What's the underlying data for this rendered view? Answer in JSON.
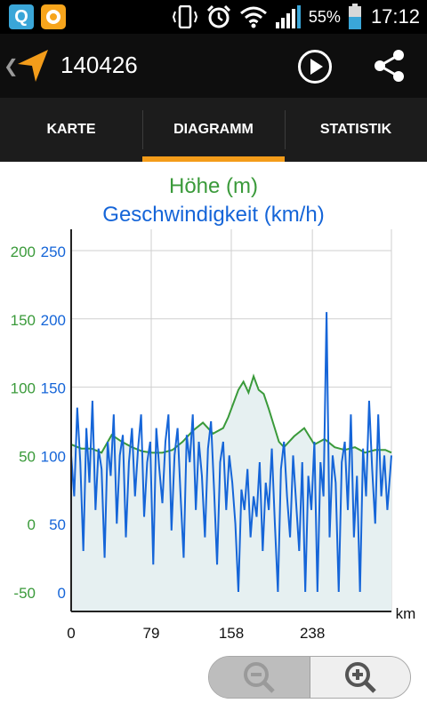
{
  "status_bar": {
    "app_icon_1": "Q",
    "battery_text": "55%",
    "time": "17:12"
  },
  "action_bar": {
    "title": "140426",
    "icons": [
      "back-chevron-icon",
      "navigation-arrow-icon",
      "play-icon",
      "share-icon"
    ]
  },
  "tabs": [
    {
      "label": "KARTE",
      "active": false
    },
    {
      "label": "DIAGRAMM",
      "active": true
    },
    {
      "label": "STATISTIK",
      "active": false
    }
  ],
  "colors": {
    "elevation": "#3a9a3a",
    "speed": "#1565d8",
    "accent": "#f39c1a",
    "fill": "#e6f0f1"
  },
  "chart_data": {
    "type": "line",
    "title": "Höhe (m)",
    "subtitle": "Geschwindigkeit (km/h)",
    "xlabel": "km",
    "x_ticks": [
      "0",
      "79",
      "158",
      "238"
    ],
    "x_tick_values": [
      0,
      79,
      158,
      238
    ],
    "xlim": [
      0,
      316
    ],
    "y_left_ticks": [
      "200",
      "150",
      "100",
      "50",
      "0",
      "-50"
    ],
    "y_left_values": [
      200,
      150,
      100,
      50,
      0,
      -50
    ],
    "y_left_range": [
      -50,
      200
    ],
    "y_right_ticks": [
      "250",
      "200",
      "150",
      "100",
      "50",
      "0"
    ],
    "y_right_values": [
      250,
      200,
      150,
      100,
      50,
      0
    ],
    "y_right_range": [
      0,
      250
    ],
    "grid": true,
    "series": [
      {
        "name": "Höhe (m)",
        "axis": "left",
        "x": [
          0,
          10,
          20,
          30,
          40,
          50,
          60,
          70,
          80,
          90,
          100,
          110,
          120,
          130,
          140,
          150,
          155,
          160,
          165,
          170,
          175,
          180,
          185,
          190,
          195,
          200,
          205,
          210,
          220,
          230,
          240,
          250,
          260,
          270,
          280,
          290,
          300,
          310,
          316
        ],
        "values": [
          58,
          55,
          55,
          52,
          65,
          60,
          56,
          53,
          52,
          52,
          54,
          60,
          68,
          74,
          66,
          70,
          78,
          88,
          98,
          104,
          96,
          108,
          98,
          95,
          84,
          72,
          60,
          56,
          64,
          70,
          58,
          62,
          56,
          54,
          56,
          52,
          54,
          54,
          52
        ]
      },
      {
        "name": "Geschwindigkeit (km/h)",
        "axis": "right",
        "x": [
          0,
          3,
          6,
          9,
          12,
          15,
          18,
          21,
          24,
          27,
          30,
          33,
          36,
          39,
          42,
          45,
          48,
          51,
          54,
          57,
          60,
          63,
          66,
          69,
          72,
          75,
          78,
          81,
          84,
          87,
          90,
          93,
          96,
          99,
          102,
          105,
          108,
          111,
          114,
          117,
          120,
          123,
          126,
          129,
          132,
          135,
          138,
          141,
          144,
          147,
          150,
          153,
          156,
          159,
          162,
          165,
          168,
          171,
          174,
          177,
          180,
          183,
          186,
          189,
          192,
          195,
          198,
          201,
          204,
          207,
          210,
          213,
          216,
          219,
          222,
          225,
          228,
          231,
          234,
          237,
          240,
          243,
          246,
          249,
          252,
          255,
          258,
          261,
          264,
          267,
          270,
          273,
          276,
          279,
          282,
          285,
          288,
          291,
          294,
          297,
          300,
          303,
          306,
          309,
          312,
          316
        ],
        "values": [
          100,
          70,
          135,
          95,
          30,
          120,
          80,
          140,
          60,
          105,
          90,
          25,
          110,
          85,
          130,
          50,
          100,
          115,
          40,
          95,
          120,
          70,
          105,
          130,
          55,
          95,
          110,
          20,
          120,
          90,
          65,
          110,
          130,
          45,
          100,
          120,
          70,
          25,
          115,
          95,
          130,
          60,
          110,
          85,
          40,
          105,
          125,
          75,
          20,
          95,
          110,
          60,
          100,
          80,
          50,
          0,
          75,
          60,
          90,
          40,
          70,
          55,
          95,
          30,
          80,
          60,
          105,
          50,
          0,
          90,
          110,
          70,
          40,
          100,
          65,
          30,
          95,
          0,
          85,
          60,
          110,
          0,
          95,
          70,
          205,
          40,
          100,
          80,
          0,
          95,
          110,
          60,
          130,
          40,
          85,
          0,
          105,
          70,
          140,
          90,
          50,
          130,
          70,
          100,
          60,
          100
        ]
      }
    ]
  },
  "zoom": {
    "out_icon": "zoom-out-icon",
    "in_icon": "zoom-in-icon"
  }
}
